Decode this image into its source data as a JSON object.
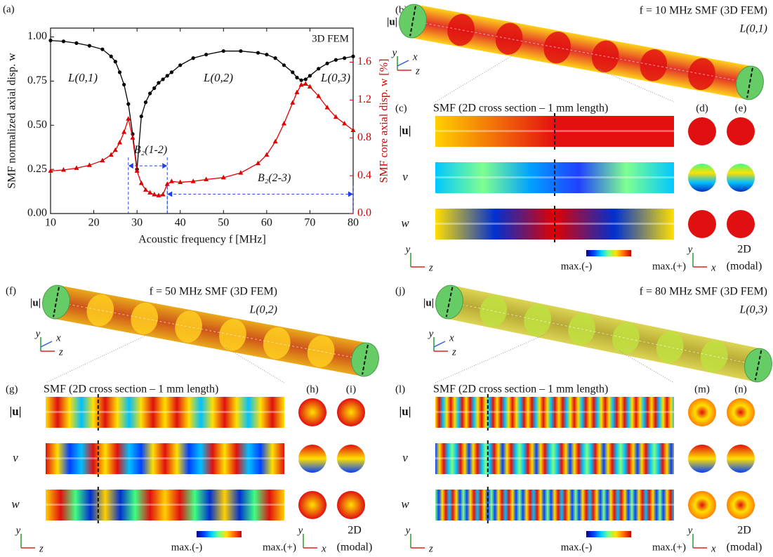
{
  "chart_data": {
    "type": "line",
    "panel_label": "(a)",
    "annotation": "3D FEM",
    "x_label": "Acoustic frequency f [MHz]",
    "y_label": "SMF normalized  axial disp. w",
    "y2_label": "SMF core axial disp. w [%]",
    "x": [
      10,
      13,
      16,
      19,
      22,
      24,
      25,
      26,
      27,
      28,
      29,
      30,
      31,
      32,
      33,
      34,
      35,
      36,
      37,
      38,
      40,
      43,
      46,
      50,
      54,
      58,
      60,
      62,
      64,
      66,
      67,
      68,
      69,
      70,
      72,
      74,
      76,
      78,
      80
    ],
    "series": [
      {
        "color": "#000000",
        "marker": "circle",
        "values": [
          0.98,
          0.975,
          0.965,
          0.95,
          0.93,
          0.89,
          0.86,
          0.8,
          0.73,
          0.62,
          0.45,
          0.25,
          0.55,
          0.63,
          0.68,
          0.71,
          0.74,
          0.76,
          0.78,
          0.8,
          0.84,
          0.88,
          0.9,
          0.92,
          0.92,
          0.91,
          0.9,
          0.88,
          0.84,
          0.8,
          0.77,
          0.755,
          0.76,
          0.78,
          0.82,
          0.85,
          0.87,
          0.88,
          0.89
        ]
      },
      {
        "color": "#e00000",
        "marker": "triangle",
        "axis": "y2",
        "values": [
          0.45,
          0.46,
          0.48,
          0.51,
          0.56,
          0.62,
          0.67,
          0.75,
          0.86,
          1.0,
          0.8,
          0.45,
          0.32,
          0.25,
          0.22,
          0.2,
          0.19,
          0.2,
          0.31,
          0.34,
          0.33,
          0.34,
          0.36,
          0.38,
          0.43,
          0.53,
          0.62,
          0.76,
          0.95,
          1.17,
          1.28,
          1.36,
          1.37,
          1.34,
          1.24,
          1.12,
          1.02,
          0.95,
          0.88
        ]
      }
    ],
    "xlim": [
      10,
      80
    ],
    "xticks": [
      10,
      20,
      30,
      40,
      50,
      60,
      70,
      80
    ],
    "ylim": [
      0,
      1.05
    ],
    "yticks": [
      {
        "value": 0,
        "label": "0.00"
      },
      {
        "value": 0.25,
        "label": "0.25"
      },
      {
        "value": 0.5,
        "label": "0.50"
      },
      {
        "value": 0.75,
        "label": "0.75"
      },
      {
        "value": 1,
        "label": "1.00"
      }
    ],
    "y2lim": [
      0,
      1.96
    ],
    "y2ticks": [
      {
        "value": 0,
        "label": "0.0"
      },
      0.4,
      0.8,
      1.2,
      1.6
    ],
    "mode_labels": [
      "L(0,1)",
      "L(0,2)",
      "L(0,3)"
    ],
    "bands": [
      {
        "label": "B₂(1-2)",
        "x_range": [
          28,
          37
        ]
      },
      {
        "label": "B₂(2-3)",
        "x_range": [
          37,
          80
        ]
      }
    ]
  },
  "panels": [
    {
      "fiber": {
        "label": "(b)",
        "title": "f = 10 MHz SMF (3D FEM)",
        "mode": "L(0,1)",
        "field": "|u|",
        "axes": [
          "y",
          "x",
          "z"
        ]
      },
      "section": {
        "label": "(c)",
        "title": "SMF (2D cross section – 1 mm length)",
        "rows": [
          "|u|",
          "v",
          "w"
        ],
        "columns": [
          "(d)",
          "(e)"
        ],
        "colorbar": [
          "max.(-)",
          "max.(+)"
        ],
        "side_axes": [
          "y",
          "z"
        ],
        "cross_axes": [
          "y",
          "x"
        ],
        "modal": [
          "2D",
          "(modal)"
        ]
      }
    },
    {
      "fiber": {
        "label": "(f)",
        "title": "f = 50 MHz SMF (3D FEM)",
        "mode": "L(0,2)",
        "field": "|u|",
        "axes": [
          "y",
          "x",
          "z"
        ]
      },
      "section": {
        "label": "(g)",
        "title": "SMF (2D cross section – 1 mm length)",
        "rows": [
          "|u|",
          "v",
          "w"
        ],
        "columns": [
          "(h)",
          "(i)"
        ],
        "colorbar": [
          "max.(-)",
          "max.(+)"
        ],
        "side_axes": [
          "y",
          "z"
        ],
        "cross_axes": [
          "y",
          "x"
        ],
        "modal": [
          "2D",
          "(modal)"
        ]
      }
    },
    {
      "fiber": {
        "label": "(j)",
        "title": "f = 80 MHz SMF (3D FEM)",
        "mode": "L(0,3)",
        "field": "|u|",
        "axes": [
          "y",
          "x",
          "z"
        ]
      },
      "section": {
        "label": "(l)",
        "title": "SMF (2D cross section – 1 mm length)",
        "rows": [
          "|u|",
          "v",
          "w"
        ],
        "columns": [
          "(m)",
          "(n)"
        ],
        "colorbar": [
          "max.(-)",
          "max.(+)"
        ],
        "side_axes": [
          "y",
          "z"
        ],
        "cross_axes": [
          "y",
          "x"
        ],
        "modal": [
          "2D",
          "(modal)"
        ]
      }
    }
  ]
}
